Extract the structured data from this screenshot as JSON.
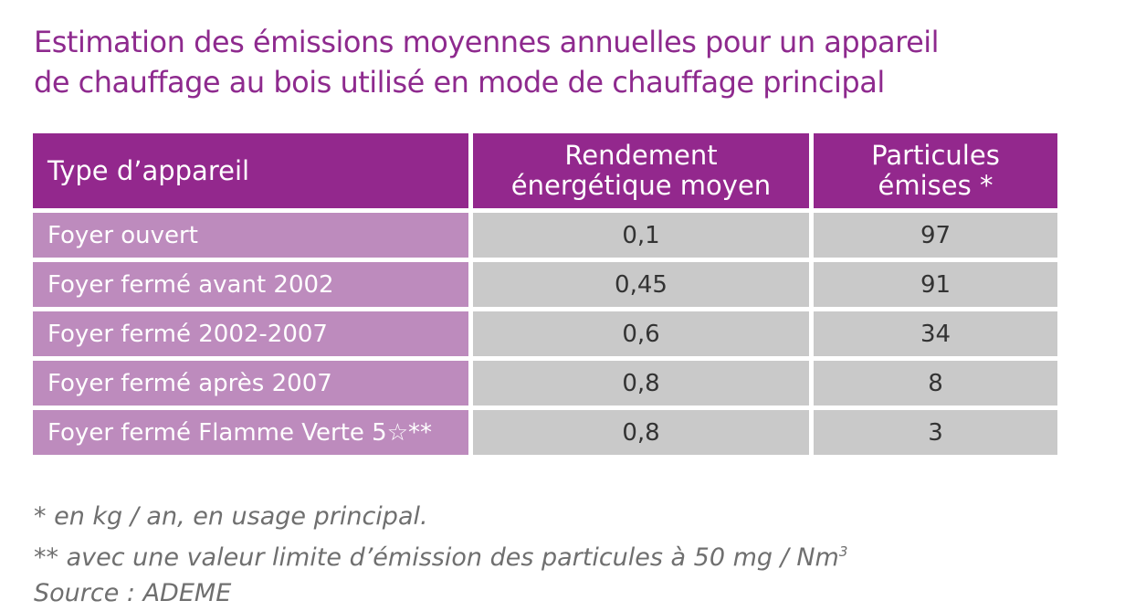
{
  "title": {
    "line1": "Estimation des émissions moyennes annuelles pour un appareil",
    "line2": "de chauffage au bois utilisé en mode de chauffage principal"
  },
  "table": {
    "headers": {
      "type": "Type d’appareil",
      "rendement_line1": "Rendement",
      "rendement_line2": "énergétique moyen",
      "particules_line1": "Particules",
      "particules_line2": "émises *"
    },
    "rows": [
      {
        "type": "Foyer ouvert",
        "rendement": "0,1",
        "particules": "97"
      },
      {
        "type": "Foyer fermé avant 2002",
        "rendement": "0,45",
        "particules": "91"
      },
      {
        "type": "Foyer fermé 2002-2007",
        "rendement": "0,6",
        "particules": "34"
      },
      {
        "type": "Foyer fermé après 2007",
        "rendement": "0,8",
        "particules": "8"
      },
      {
        "type": "Foyer fermé Flamme Verte 5☆**",
        "rendement": "0,8",
        "particules": "3"
      }
    ]
  },
  "notes": {
    "note1": "* en kg / an, en usage principal.",
    "note2": "** avec une valeur limite d’émission des particules à 50 mg / Nm",
    "note2_sup": "3",
    "source": "Source : ADEME"
  },
  "colors": {
    "title": "#8e2a8e",
    "header_bg": "#93288d",
    "first_col_bg": "#bd8bbd",
    "value_bg": "#c9c9c9"
  }
}
